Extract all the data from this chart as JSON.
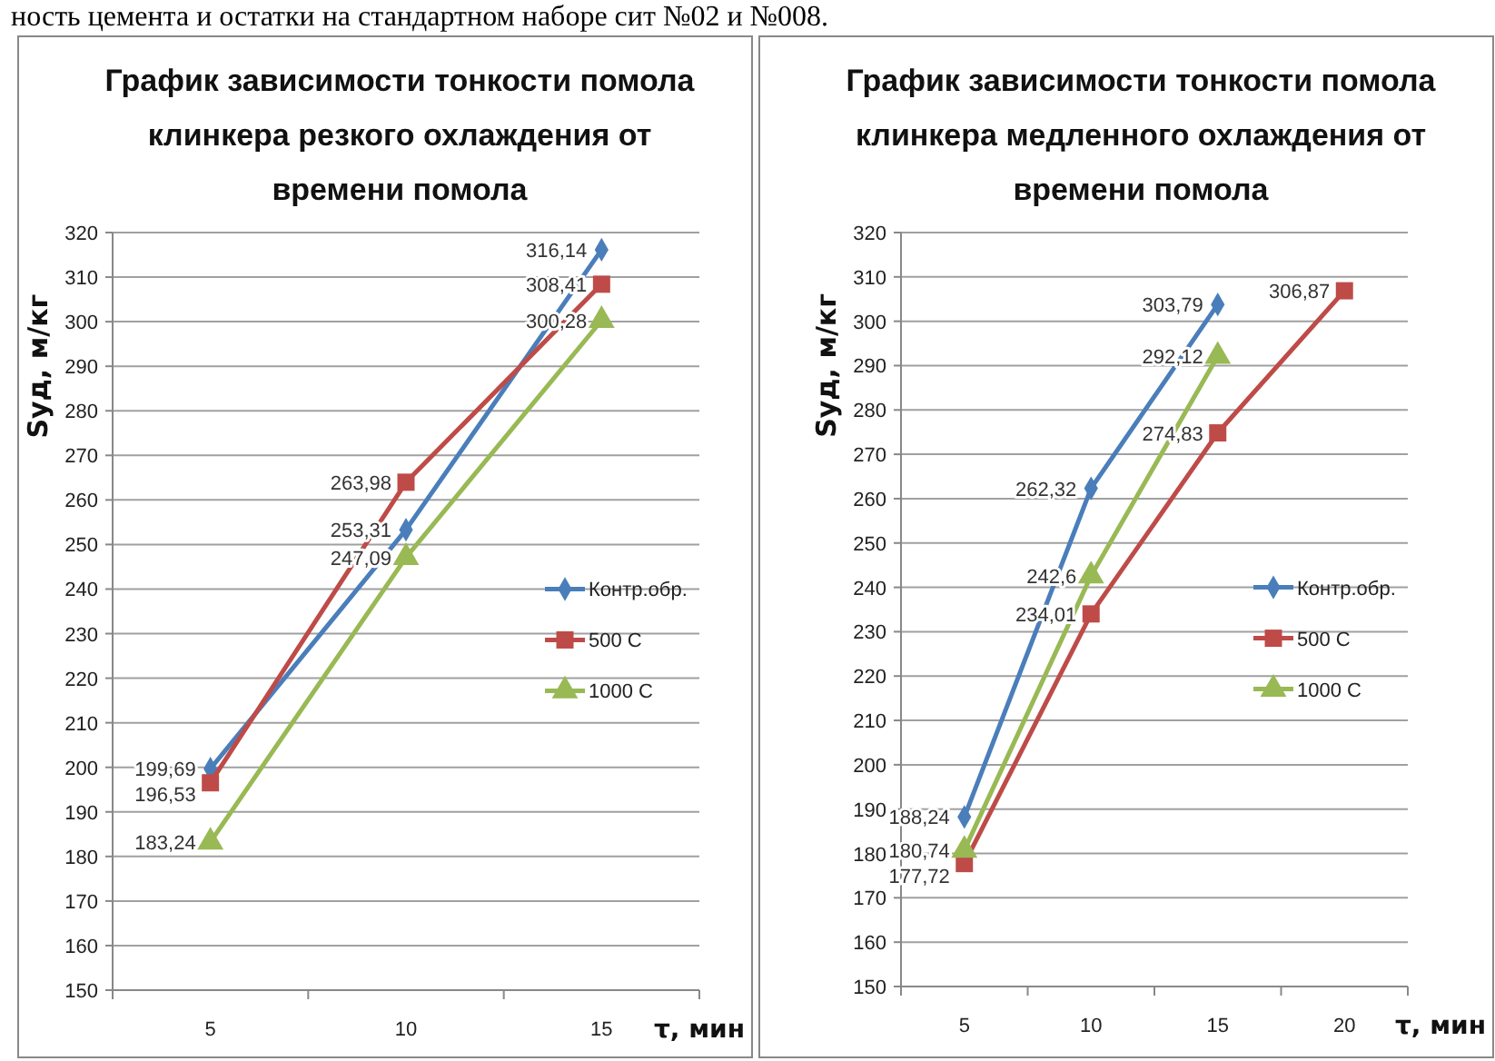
{
  "chart_data": [
    {
      "type": "line",
      "title": "График зависимости тонкости помола клинкера резкого охлаждения от времени помола",
      "ylabel": "Sуд, м/кг",
      "xlabel": "τ, мин",
      "annotations": [
        "ность цемента и остатки на стандартном наборе сит №02 и №008."
      ],
      "categories": [
        "5",
        "10",
        "15"
      ],
      "ylim": [
        150,
        320
      ],
      "yticks": [
        150,
        160,
        170,
        180,
        190,
        200,
        210,
        220,
        230,
        240,
        250,
        260,
        270,
        280,
        290,
        300,
        310,
        320
      ],
      "grid": "y",
      "legend": "right",
      "series": [
        {
          "name": "Контр.обр.",
          "color": "#4a7ebb",
          "marker": "diamond",
          "values": [
            199.69,
            253.31,
            316.14
          ],
          "value_labels": [
            "199,69",
            "253,31",
            "316,14"
          ]
        },
        {
          "name": "500 С",
          "color": "#be4b48",
          "marker": "square",
          "values": [
            196.53,
            263.98,
            308.41
          ],
          "value_labels": [
            "196,53",
            "263,98",
            "308,41"
          ]
        },
        {
          "name": "1000 С",
          "color": "#98b954",
          "marker": "triangle",
          "values": [
            183.24,
            247.09,
            300.28
          ],
          "value_labels": [
            "183,24",
            "247,09",
            "300,28"
          ]
        }
      ]
    },
    {
      "type": "line",
      "title": "График зависимости тонкости помола клинкера медленного охлаждения от времени помола",
      "ylabel": "Sуд, м/кг",
      "xlabel": "τ, мин",
      "categories": [
        "5",
        "10",
        "15",
        "20"
      ],
      "ylim": [
        150,
        320
      ],
      "yticks": [
        150,
        160,
        170,
        180,
        190,
        200,
        210,
        220,
        230,
        240,
        250,
        260,
        270,
        280,
        290,
        300,
        310,
        320
      ],
      "grid": "y",
      "legend": "right",
      "series": [
        {
          "name": "Контр.обр.",
          "color": "#4a7ebb",
          "marker": "diamond",
          "values": [
            188.24,
            262.32,
            303.79,
            null
          ],
          "value_labels": [
            "188,24",
            "262,32",
            "303,79",
            null
          ]
        },
        {
          "name": "500 С",
          "color": "#be4b48",
          "marker": "square",
          "values": [
            177.72,
            234.01,
            274.83,
            306.87
          ],
          "value_labels": [
            "177,72",
            "234,01",
            "274,83",
            "306,87"
          ]
        },
        {
          "name": "1000 С",
          "color": "#98b954",
          "marker": "triangle",
          "values": [
            180.74,
            242.6,
            292.12,
            null
          ],
          "value_labels": [
            "180,74",
            "242,6",
            "292,12",
            null
          ]
        }
      ]
    }
  ]
}
